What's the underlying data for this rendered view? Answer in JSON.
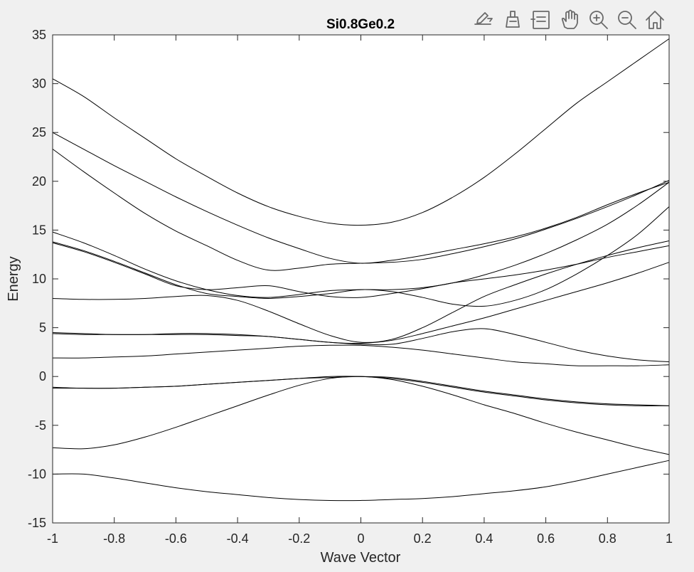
{
  "toolbar": {
    "icons": [
      "edit-export-icon",
      "brush-icon",
      "legend-icon",
      "pan-icon",
      "zoom-in-icon",
      "zoom-out-icon",
      "home-icon"
    ]
  },
  "chart_data": {
    "type": "line",
    "title": "Si0.8Ge0.2",
    "xlabel": "Wave Vector",
    "ylabel": "Energy",
    "xlim": [
      -1,
      1
    ],
    "ylim": [
      -15,
      35
    ],
    "xticks": [
      "-1",
      "-0.8",
      "-0.6",
      "-0.4",
      "-0.2",
      "0",
      "0.2",
      "0.4",
      "0.6",
      "0.8",
      "1"
    ],
    "yticks": [
      "-15",
      "-10",
      "-5",
      "0",
      "5",
      "10",
      "15",
      "20",
      "25",
      "30",
      "35"
    ],
    "grid": false,
    "line_color": "#000000",
    "x": [
      -1,
      -0.9,
      -0.8,
      -0.7,
      -0.6,
      -0.5,
      -0.4,
      -0.3,
      -0.2,
      -0.1,
      0,
      0.1,
      0.2,
      0.3,
      0.4,
      0.5,
      0.6,
      0.7,
      0.8,
      0.9,
      1
    ],
    "series": [
      {
        "values": [
          -10.0,
          -10.0,
          -10.4,
          -10.9,
          -11.4,
          -11.8,
          -12.1,
          -12.4,
          -12.6,
          -12.7,
          -12.7,
          -12.6,
          -12.5,
          -12.3,
          -12.0,
          -11.7,
          -11.3,
          -10.7,
          -10.0,
          -9.3,
          -8.6
        ]
      },
      {
        "values": [
          -7.3,
          -7.4,
          -7.0,
          -6.2,
          -5.2,
          -4.1,
          -3.0,
          -1.9,
          -0.9,
          -0.2,
          0.0,
          -0.3,
          -1.0,
          -1.9,
          -2.9,
          -3.8,
          -4.8,
          -5.7,
          -6.5,
          -7.3,
          -8.0
        ]
      },
      {
        "values": [
          -1.1,
          -1.2,
          -1.2,
          -1.1,
          -1.0,
          -0.8,
          -0.6,
          -0.4,
          -0.2,
          0.0,
          0.0,
          -0.2,
          -0.6,
          -1.1,
          -1.6,
          -2.0,
          -2.4,
          -2.7,
          -2.9,
          -3.0,
          -3.0
        ]
      },
      {
        "values": [
          -1.2,
          -1.2,
          -1.2,
          -1.1,
          -1.0,
          -0.8,
          -0.6,
          -0.4,
          -0.2,
          -0.1,
          0.0,
          -0.1,
          -0.5,
          -1.0,
          -1.5,
          -1.9,
          -2.3,
          -2.6,
          -2.8,
          -2.9,
          -3.0
        ]
      },
      {
        "values": [
          1.9,
          1.9,
          2.0,
          2.1,
          2.3,
          2.5,
          2.7,
          2.9,
          3.1,
          3.2,
          3.2,
          3.0,
          2.7,
          2.3,
          1.9,
          1.5,
          1.3,
          1.1,
          1.1,
          1.1,
          1.2
        ]
      },
      {
        "values": [
          4.4,
          4.3,
          4.3,
          4.3,
          4.3,
          4.3,
          4.2,
          4.1,
          3.8,
          3.5,
          3.3,
          3.3,
          3.9,
          4.6,
          4.9,
          4.3,
          3.5,
          2.7,
          2.1,
          1.7,
          1.5
        ]
      },
      {
        "values": [
          4.5,
          4.4,
          4.3,
          4.3,
          4.4,
          4.4,
          4.3,
          4.1,
          3.8,
          3.5,
          3.4,
          3.7,
          4.4,
          5.2,
          6.0,
          6.9,
          7.8,
          8.7,
          9.6,
          10.6,
          11.7
        ]
      },
      {
        "values": [
          8.0,
          7.9,
          7.9,
          8.0,
          8.2,
          8.3,
          7.8,
          6.7,
          5.4,
          4.2,
          3.5,
          3.8,
          5.0,
          6.6,
          8.2,
          9.4,
          10.5,
          11.5,
          12.4,
          13.2,
          13.9
        ]
      },
      {
        "values": [
          13.8,
          12.9,
          11.8,
          10.6,
          9.4,
          8.5,
          8.2,
          8.0,
          8.2,
          8.5,
          8.9,
          8.7,
          8.1,
          7.4,
          7.2,
          7.8,
          8.9,
          10.5,
          12.4,
          14.6,
          17.4
        ]
      },
      {
        "values": [
          13.7,
          12.8,
          11.7,
          10.5,
          9.3,
          8.9,
          9.1,
          9.3,
          8.7,
          8.2,
          8.1,
          8.5,
          9.0,
          9.6,
          10.0,
          10.4,
          10.9,
          11.5,
          12.2,
          12.8,
          13.4
        ]
      },
      {
        "values": [
          14.8,
          13.7,
          12.4,
          11.0,
          9.8,
          8.9,
          8.3,
          8.1,
          8.4,
          8.8,
          8.9,
          8.9,
          9.1,
          9.6,
          10.4,
          11.4,
          12.6,
          14.0,
          15.6,
          17.6,
          19.9
        ]
      },
      {
        "values": [
          23.3,
          21.0,
          18.8,
          16.7,
          14.9,
          13.4,
          11.9,
          10.9,
          11.1,
          11.5,
          11.6,
          11.7,
          12.0,
          12.6,
          13.3,
          14.1,
          15.1,
          16.2,
          17.4,
          18.7,
          20.1
        ]
      },
      {
        "values": [
          25.0,
          23.3,
          21.6,
          20.0,
          18.4,
          16.9,
          15.5,
          14.2,
          13.1,
          12.1,
          11.6,
          11.9,
          12.4,
          13.0,
          13.6,
          14.3,
          15.2,
          16.3,
          17.6,
          18.8,
          19.9
        ]
      },
      {
        "values": [
          30.5,
          28.7,
          26.5,
          24.4,
          22.3,
          20.5,
          18.8,
          17.4,
          16.4,
          15.7,
          15.5,
          15.8,
          16.8,
          18.4,
          20.4,
          22.8,
          25.4,
          28.0,
          30.2,
          32.4,
          34.6
        ]
      }
    ]
  }
}
